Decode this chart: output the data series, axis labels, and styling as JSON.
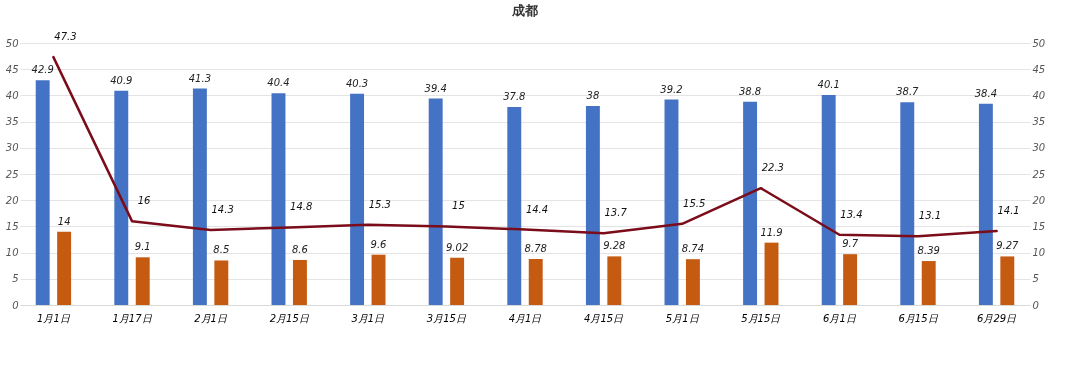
{
  "chart_data": {
    "type": "bar",
    "title": "成都",
    "categories": [
      "1月1日",
      "1月17日",
      "2月1日",
      "2月15日",
      "3月1日",
      "3月15日",
      "4月1日",
      "4月15日",
      "5月1日",
      "5月15日",
      "6月1日",
      "6月15日",
      "6月29日"
    ],
    "series": [
      {
        "color": "#4472c4",
        "values": [
          42.9,
          40.9,
          41.3,
          40.4,
          40.3,
          39.4,
          37.8,
          38,
          39.2,
          38.8,
          40.1,
          38.7,
          38.4
        ]
      },
      {
        "color": "#c55a11",
        "values": [
          14,
          9.1,
          8.5,
          8.6,
          9.6,
          9.02,
          8.78,
          9.28,
          8.74,
          11.9,
          9.7,
          8.39,
          9.27
        ]
      },
      {
        "type": "line",
        "axis": "y2",
        "color": "#7b0c1a",
        "values": [
          47.3,
          16,
          14.3,
          14.8,
          15.3,
          15,
          14.4,
          13.7,
          15.5,
          22.3,
          13.4,
          13.1,
          14.1
        ]
      }
    ],
    "ylim": [
      0,
      50
    ],
    "yticks": [
      0,
      5,
      10,
      15,
      20,
      25,
      30,
      35,
      40,
      45,
      50
    ],
    "y2lim": [
      0,
      50
    ],
    "y2ticks": [
      0,
      5,
      10,
      15,
      20,
      25,
      30,
      35,
      40,
      45,
      50
    ],
    "grid": "y",
    "data_labels": true,
    "marker": "none",
    "line_style": "solid"
  }
}
